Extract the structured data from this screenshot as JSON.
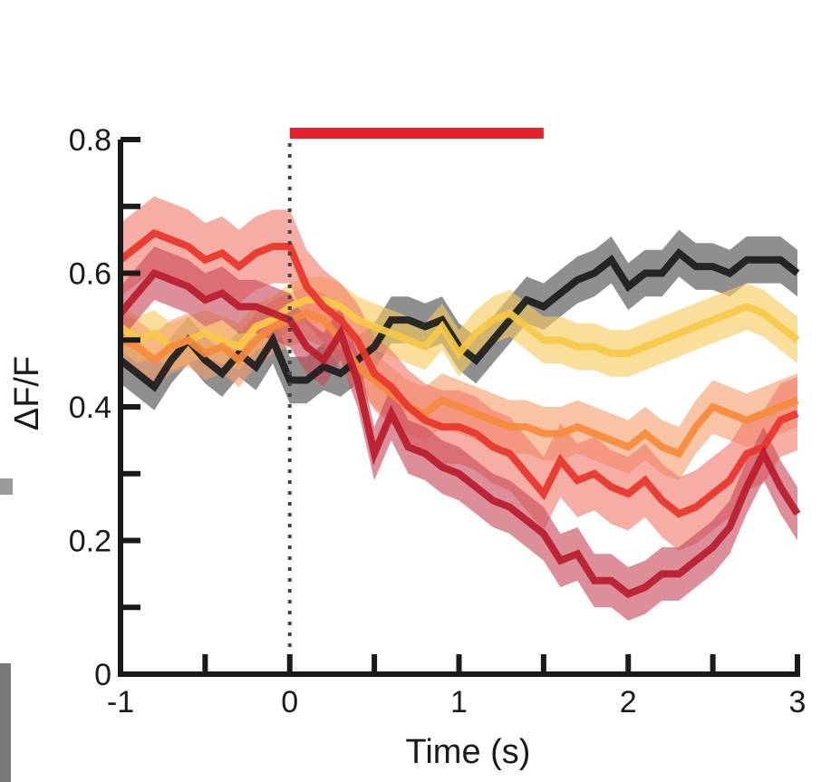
{
  "chart_data": {
    "type": "line",
    "title": "",
    "xlabel": "Time (s)",
    "ylabel": "ΔF/F",
    "xlim": [
      -1,
      3
    ],
    "ylim": [
      0,
      0.8
    ],
    "xticks": [
      -1,
      0,
      1,
      2,
      3
    ],
    "yticks": [
      0,
      0.2,
      0.4,
      0.6,
      0.8
    ],
    "xtick_labels": [
      "-1",
      "0",
      "1",
      "2",
      "3"
    ],
    "ytick_labels": [
      "0",
      "0.2",
      "0.4",
      "0.6",
      "0.8"
    ],
    "stimulus_onset": 0,
    "stimulus_bar": [
      0,
      1.5
    ],
    "stimulus_color": "#e8202a",
    "grid": false,
    "x": [
      -1,
      -0.9,
      -0.8,
      -0.7,
      -0.6,
      -0.5,
      -0.4,
      -0.3,
      -0.2,
      -0.1,
      0,
      0.1,
      0.2,
      0.3,
      0.4,
      0.5,
      0.6,
      0.7,
      0.8,
      0.9,
      1.0,
      1.1,
      1.2,
      1.3,
      1.4,
      1.5,
      1.6,
      1.7,
      1.8,
      1.9,
      2.0,
      2.1,
      2.2,
      2.3,
      2.4,
      2.5,
      2.6,
      2.7,
      2.8,
      2.9,
      3.0
    ],
    "series": [
      {
        "color": "#1c1c1c",
        "band_color": "#4a4a4a",
        "values": [
          0.47,
          0.45,
          0.43,
          0.47,
          0.5,
          0.47,
          0.45,
          0.48,
          0.46,
          0.5,
          0.44,
          0.44,
          0.46,
          0.45,
          0.47,
          0.49,
          0.53,
          0.53,
          0.52,
          0.53,
          0.49,
          0.47,
          0.5,
          0.53,
          0.56,
          0.55,
          0.57,
          0.59,
          0.6,
          0.62,
          0.58,
          0.6,
          0.6,
          0.63,
          0.61,
          0.61,
          0.6,
          0.62,
          0.62,
          0.62,
          0.6
        ],
        "band": 0.035
      },
      {
        "color": "#f7c948",
        "band_color": "#f5cc5a",
        "values": [
          0.52,
          0.5,
          0.51,
          0.49,
          0.5,
          0.51,
          0.5,
          0.49,
          0.52,
          0.53,
          0.55,
          0.56,
          0.56,
          0.55,
          0.53,
          0.52,
          0.51,
          0.5,
          0.49,
          0.52,
          0.48,
          0.51,
          0.53,
          0.54,
          0.52,
          0.5,
          0.5,
          0.49,
          0.49,
          0.48,
          0.48,
          0.49,
          0.5,
          0.51,
          0.52,
          0.53,
          0.54,
          0.55,
          0.54,
          0.52,
          0.5
        ],
        "band": 0.035
      },
      {
        "color": "#f58a3c",
        "band_color": "#f5a070",
        "values": [
          0.5,
          0.49,
          0.47,
          0.49,
          0.5,
          0.48,
          0.49,
          0.47,
          0.5,
          0.52,
          0.53,
          0.54,
          0.53,
          0.5,
          0.46,
          0.44,
          0.42,
          0.4,
          0.39,
          0.41,
          0.4,
          0.39,
          0.38,
          0.37,
          0.37,
          0.36,
          0.36,
          0.37,
          0.36,
          0.35,
          0.34,
          0.36,
          0.34,
          0.33,
          0.37,
          0.4,
          0.39,
          0.38,
          0.39,
          0.4,
          0.41
        ],
        "band": 0.04
      },
      {
        "color": "#e8342a",
        "band_color": "#f07a6a",
        "values": [
          0.62,
          0.64,
          0.66,
          0.65,
          0.64,
          0.62,
          0.63,
          0.61,
          0.63,
          0.64,
          0.64,
          0.58,
          0.55,
          0.53,
          0.5,
          0.45,
          0.43,
          0.4,
          0.38,
          0.37,
          0.37,
          0.36,
          0.34,
          0.33,
          0.3,
          0.27,
          0.32,
          0.29,
          0.3,
          0.28,
          0.27,
          0.29,
          0.26,
          0.24,
          0.25,
          0.27,
          0.29,
          0.33,
          0.34,
          0.38,
          0.39
        ],
        "band": 0.055
      },
      {
        "color": "#b81c2e",
        "band_color": "#c84a5a",
        "values": [
          0.54,
          0.57,
          0.6,
          0.59,
          0.58,
          0.56,
          0.57,
          0.55,
          0.55,
          0.54,
          0.53,
          0.49,
          0.47,
          0.51,
          0.44,
          0.33,
          0.39,
          0.34,
          0.33,
          0.31,
          0.3,
          0.28,
          0.26,
          0.25,
          0.23,
          0.21,
          0.17,
          0.18,
          0.14,
          0.14,
          0.12,
          0.13,
          0.15,
          0.15,
          0.17,
          0.19,
          0.22,
          0.28,
          0.33,
          0.28,
          0.24
        ],
        "band": 0.04
      }
    ]
  }
}
